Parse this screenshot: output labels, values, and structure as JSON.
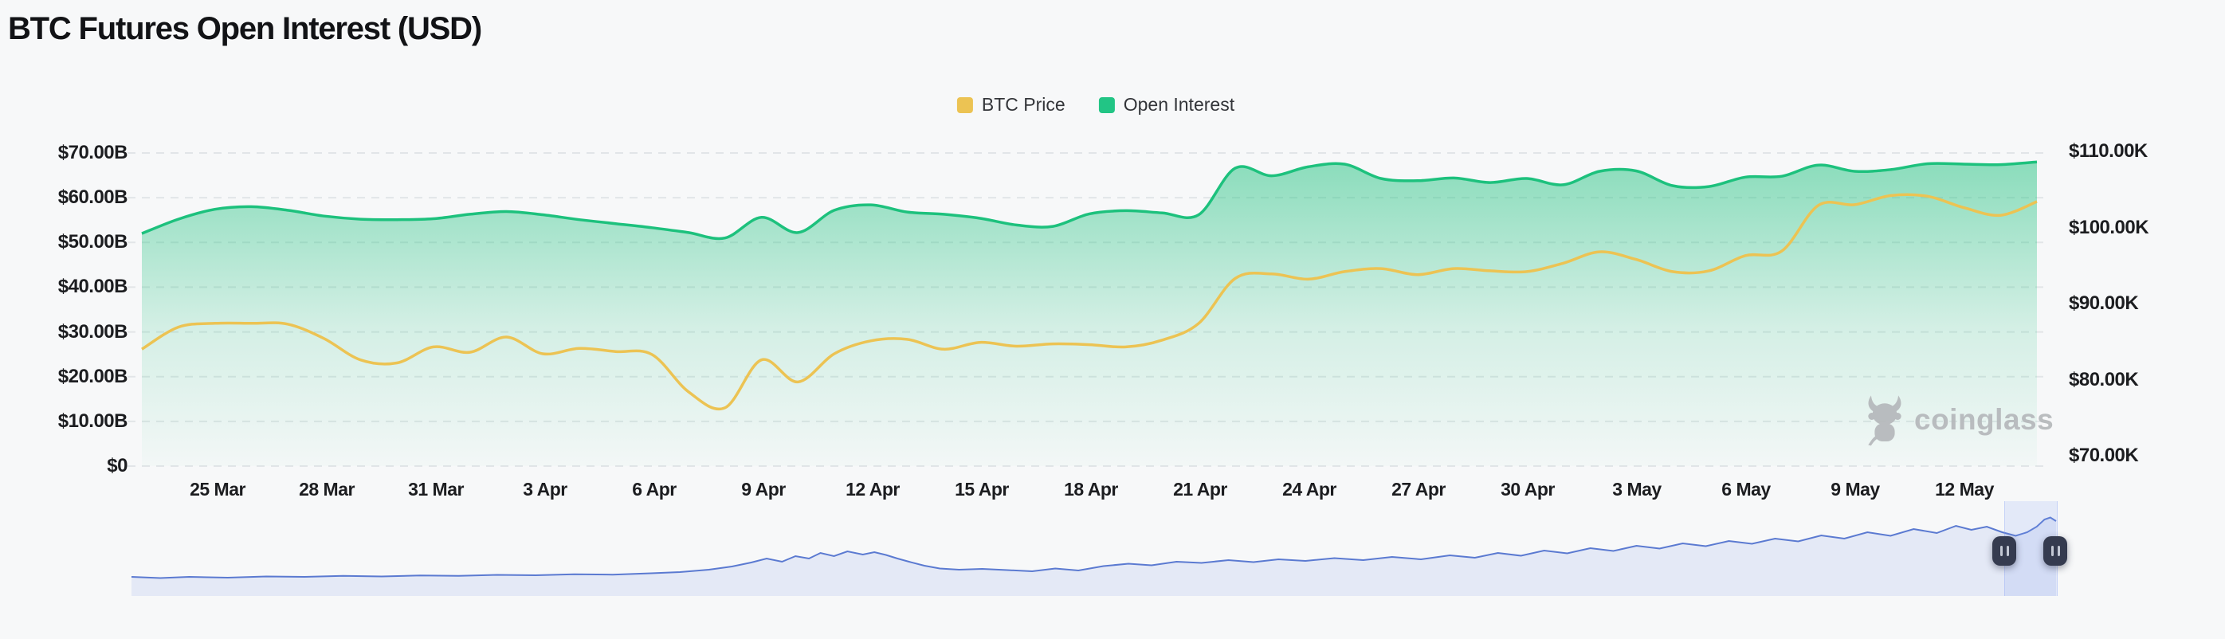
{
  "page": {
    "title": "BTC Futures Open Interest (USD)",
    "background": "#f7f8f9"
  },
  "legend": {
    "items": [
      {
        "label": "BTC Price",
        "color": "#ecc353"
      },
      {
        "label": "Open Interest",
        "color": "#22c585"
      }
    ]
  },
  "watermark": {
    "label": "coinglass",
    "icon": "coinglass-bull-icon",
    "color": "#b5b8bb"
  },
  "axes": {
    "left_ticks": [
      "$70.00B",
      "$60.00B",
      "$50.00B",
      "$40.00B",
      "$30.00B",
      "$20.00B",
      "$10.00B",
      "$0"
    ],
    "right_ticks": [
      "$110.00K",
      "$100.00K",
      "$90.00K",
      "$80.00K",
      "$70.00K"
    ],
    "x_ticks": [
      "25 Mar",
      "28 Mar",
      "31 Mar",
      "3 Apr",
      "6 Apr",
      "9 Apr",
      "12 Apr",
      "15 Apr",
      "18 Apr",
      "21 Apr",
      "24 Apr",
      "27 Apr",
      "30 Apr",
      "3 May",
      "6 May",
      "9 May",
      "12 May"
    ]
  },
  "chart_data": {
    "type": "area",
    "title": "BTC Futures Open Interest (USD)",
    "grid": "dashed-horizontal",
    "legend_position": "top-center",
    "x": [
      "23 Mar",
      "24 Mar",
      "25 Mar",
      "26 Mar",
      "27 Mar",
      "28 Mar",
      "29 Mar",
      "30 Mar",
      "31 Mar",
      "1 Apr",
      "2 Apr",
      "3 Apr",
      "4 Apr",
      "5 Apr",
      "6 Apr",
      "7 Apr",
      "8 Apr",
      "9 Apr",
      "10 Apr",
      "11 Apr",
      "12 Apr",
      "13 Apr",
      "14 Apr",
      "15 Apr",
      "16 Apr",
      "17 Apr",
      "18 Apr",
      "19 Apr",
      "20 Apr",
      "21 Apr",
      "22 Apr",
      "23 Apr",
      "24 Apr",
      "25 Apr",
      "26 Apr",
      "27 Apr",
      "28 Apr",
      "29 Apr",
      "30 Apr",
      "1 May",
      "2 May",
      "3 May",
      "4 May",
      "5 May",
      "6 May",
      "7 May",
      "8 May",
      "9 May",
      "10 May",
      "11 May",
      "12 May",
      "13 May",
      "14 May"
    ],
    "left_axis": {
      "unit": "USD billions",
      "range": [
        0,
        70
      ],
      "tick_step": 10
    },
    "right_axis": {
      "unit": "USD thousands",
      "range": [
        70,
        110
      ],
      "tick_step": 10
    },
    "series": [
      {
        "name": "Open Interest",
        "type": "area",
        "color": "#1dc17d",
        "y_axis": "left",
        "unit": "USD billions",
        "values": [
          52.0,
          55.2,
          57.4,
          58.0,
          57.2,
          55.9,
          55.2,
          55.1,
          55.3,
          56.3,
          56.9,
          56.2,
          55.1,
          54.2,
          53.3,
          52.2,
          51.0,
          55.6,
          52.2,
          57.2,
          58.4,
          56.8,
          56.3,
          55.4,
          53.9,
          53.6,
          56.4,
          57.1,
          56.6,
          56.2,
          66.6,
          64.9,
          66.9,
          67.5,
          64.3,
          63.8,
          64.4,
          63.4,
          64.3,
          62.9,
          65.9,
          66.0,
          62.7,
          62.5,
          64.6,
          64.8,
          67.3,
          65.9,
          66.3,
          67.6,
          67.5,
          67.4,
          68.0
        ]
      },
      {
        "name": "BTC Price",
        "type": "line",
        "color": "#ecc353",
        "y_axis": "right",
        "unit": "USD thousands",
        "values": [
          84.0,
          86.9,
          87.4,
          87.4,
          87.3,
          85.4,
          82.6,
          82.2,
          84.3,
          83.6,
          85.6,
          83.4,
          84.1,
          83.7,
          83.3,
          78.4,
          76.3,
          82.6,
          79.7,
          83.4,
          85.1,
          85.3,
          84.0,
          84.9,
          84.4,
          84.7,
          84.6,
          84.3,
          85.2,
          87.4,
          93.3,
          93.9,
          93.2,
          94.2,
          94.6,
          93.8,
          94.6,
          94.3,
          94.2,
          95.3,
          96.8,
          95.8,
          94.2,
          94.3,
          96.3,
          96.9,
          102.9,
          103.0,
          104.2,
          104.1,
          102.6,
          101.6,
          103.4
        ]
      }
    ]
  },
  "navigator": {
    "type": "area-sparkline",
    "line_color": "#5b7ad1",
    "fill_color": "#e4e9f6",
    "handle_icon": "pause-bars-icon",
    "selection_range_frac": [
      0.973,
      1.0
    ],
    "profile": [
      [
        0.0,
        0.24
      ],
      [
        0.015,
        0.225
      ],
      [
        0.03,
        0.24
      ],
      [
        0.05,
        0.23
      ],
      [
        0.07,
        0.245
      ],
      [
        0.09,
        0.24
      ],
      [
        0.11,
        0.252
      ],
      [
        0.13,
        0.245
      ],
      [
        0.15,
        0.258
      ],
      [
        0.17,
        0.252
      ],
      [
        0.19,
        0.265
      ],
      [
        0.21,
        0.26
      ],
      [
        0.23,
        0.272
      ],
      [
        0.25,
        0.268
      ],
      [
        0.27,
        0.285
      ],
      [
        0.285,
        0.3
      ],
      [
        0.3,
        0.33
      ],
      [
        0.312,
        0.37
      ],
      [
        0.322,
        0.42
      ],
      [
        0.33,
        0.47
      ],
      [
        0.338,
        0.43
      ],
      [
        0.345,
        0.5
      ],
      [
        0.352,
        0.47
      ],
      [
        0.358,
        0.54
      ],
      [
        0.365,
        0.5
      ],
      [
        0.372,
        0.56
      ],
      [
        0.38,
        0.52
      ],
      [
        0.386,
        0.55
      ],
      [
        0.392,
        0.515
      ],
      [
        0.398,
        0.47
      ],
      [
        0.404,
        0.43
      ],
      [
        0.412,
        0.38
      ],
      [
        0.42,
        0.345
      ],
      [
        0.43,
        0.33
      ],
      [
        0.442,
        0.34
      ],
      [
        0.455,
        0.325
      ],
      [
        0.468,
        0.31
      ],
      [
        0.48,
        0.345
      ],
      [
        0.492,
        0.32
      ],
      [
        0.505,
        0.375
      ],
      [
        0.518,
        0.405
      ],
      [
        0.53,
        0.385
      ],
      [
        0.543,
        0.43
      ],
      [
        0.556,
        0.415
      ],
      [
        0.57,
        0.45
      ],
      [
        0.583,
        0.425
      ],
      [
        0.596,
        0.46
      ],
      [
        0.61,
        0.44
      ],
      [
        0.625,
        0.475
      ],
      [
        0.64,
        0.45
      ],
      [
        0.655,
        0.49
      ],
      [
        0.67,
        0.46
      ],
      [
        0.685,
        0.51
      ],
      [
        0.698,
        0.48
      ],
      [
        0.71,
        0.54
      ],
      [
        0.722,
        0.505
      ],
      [
        0.734,
        0.57
      ],
      [
        0.746,
        0.535
      ],
      [
        0.758,
        0.6
      ],
      [
        0.77,
        0.565
      ],
      [
        0.782,
        0.63
      ],
      [
        0.794,
        0.595
      ],
      [
        0.806,
        0.66
      ],
      [
        0.818,
        0.625
      ],
      [
        0.83,
        0.69
      ],
      [
        0.842,
        0.655
      ],
      [
        0.854,
        0.72
      ],
      [
        0.866,
        0.685
      ],
      [
        0.878,
        0.76
      ],
      [
        0.89,
        0.72
      ],
      [
        0.902,
        0.8
      ],
      [
        0.914,
        0.755
      ],
      [
        0.926,
        0.84
      ],
      [
        0.938,
        0.79
      ],
      [
        0.948,
        0.88
      ],
      [
        0.956,
        0.83
      ],
      [
        0.964,
        0.87
      ],
      [
        0.972,
        0.8
      ],
      [
        0.979,
        0.755
      ],
      [
        0.985,
        0.8
      ],
      [
        0.99,
        0.87
      ],
      [
        0.994,
        0.96
      ],
      [
        0.997,
        0.985
      ],
      [
        1.0,
        0.94
      ]
    ]
  }
}
